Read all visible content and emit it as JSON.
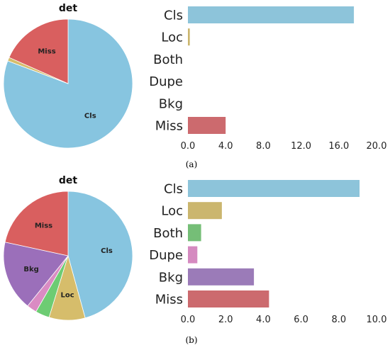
{
  "chart_data": [
    {
      "type": "pie",
      "title": "det",
      "categories": [
        "Cls",
        "Loc",
        "Both",
        "Dupe",
        "Bkg",
        "Miss"
      ],
      "values": [
        17.6,
        0.2,
        0.0,
        0.0,
        0.0,
        4.0
      ],
      "slice_labels": [
        "Cls",
        "",
        "",
        "",
        "",
        "Miss"
      ],
      "colors": [
        "#87c5e0",
        "#d6bd6b",
        "#6dcc73",
        "#da8bc3",
        "#9b6fba",
        "#d95f5f"
      ]
    },
    {
      "type": "bar",
      "orientation": "horizontal",
      "categories": [
        "Cls",
        "Loc",
        "Both",
        "Dupe",
        "Bkg",
        "Miss"
      ],
      "values": [
        17.6,
        0.2,
        0.0,
        0.0,
        0.0,
        4.0
      ],
      "xlim": [
        0,
        20
      ],
      "xticks": [
        "0.0",
        "4.0",
        "8.0",
        "12.0",
        "16.0",
        "20.0"
      ],
      "colors": [
        "#8dc4da",
        "#cbb66e",
        "#75be77",
        "#d58ac0",
        "#9b7bb8",
        "#cc6a6e"
      ]
    },
    {
      "type": "pie",
      "title": "det",
      "categories": [
        "Cls",
        "Loc",
        "Both",
        "Dupe",
        "Bkg",
        "Miss"
      ],
      "values": [
        9.1,
        1.8,
        0.7,
        0.5,
        3.5,
        4.3
      ],
      "slice_labels": [
        "Cls",
        "Loc",
        "",
        "",
        "Bkg",
        "Miss"
      ],
      "colors": [
        "#87c5e0",
        "#d6bd6b",
        "#6dcc73",
        "#da8bc3",
        "#9b6fba",
        "#d95f5f"
      ]
    },
    {
      "type": "bar",
      "orientation": "horizontal",
      "categories": [
        "Cls",
        "Loc",
        "Both",
        "Dupe",
        "Bkg",
        "Miss"
      ],
      "values": [
        9.1,
        1.8,
        0.7,
        0.5,
        3.5,
        4.3
      ],
      "xlim": [
        0,
        10
      ],
      "xticks": [
        "0.0",
        "2.0",
        "4.0",
        "6.0",
        "8.0",
        "10.0"
      ],
      "colors": [
        "#8dc4da",
        "#cbb66e",
        "#75be77",
        "#d58ac0",
        "#9b7bb8",
        "#cc6a6e"
      ]
    }
  ],
  "captions": [
    "(a)",
    "(b)"
  ]
}
